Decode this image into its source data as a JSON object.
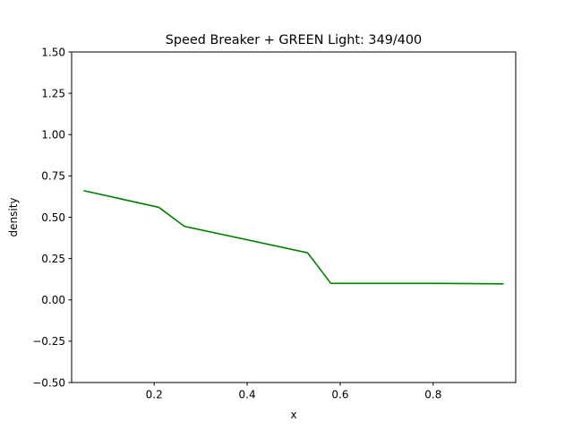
{
  "chart_data": {
    "type": "line",
    "title": "Speed Breaker + GREEN Light: 349/400",
    "xlabel": "x",
    "ylabel": "density",
    "xlim": [
      0.0225,
      0.9775
    ],
    "ylim": [
      -0.5,
      1.5
    ],
    "grid": false,
    "legend": null,
    "x_ticks": [
      0.2,
      0.4,
      0.6,
      0.8
    ],
    "x_tick_labels": [
      "0.2",
      "0.4",
      "0.6",
      "0.8"
    ],
    "y_ticks": [
      -0.5,
      -0.25,
      0.0,
      0.25,
      0.5,
      0.75,
      1.0,
      1.25,
      1.5
    ],
    "y_tick_labels": [
      "−0.50",
      "−0.25",
      "0.00",
      "0.25",
      "0.50",
      "0.75",
      "1.00",
      "1.25",
      "1.50"
    ],
    "series": [
      {
        "name": "density",
        "color": "#008000",
        "x": [
          0.05,
          0.21,
          0.265,
          0.53,
          0.58,
          0.8,
          0.95
        ],
        "y": [
          0.66,
          0.56,
          0.445,
          0.285,
          0.1,
          0.1,
          0.097
        ]
      }
    ]
  }
}
